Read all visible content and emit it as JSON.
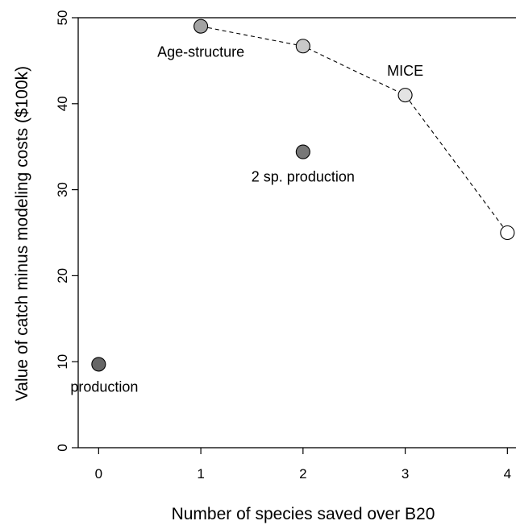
{
  "chart_data": {
    "type": "scatter",
    "title": "",
    "xlabel": "Number of species saved over B20",
    "ylabel": "Value of catch minus modeling costs ($100k)",
    "xlim": [
      -0.2,
      4.1
    ],
    "ylim": [
      0,
      50
    ],
    "xticks": [
      "0",
      "1",
      "2",
      "3",
      "4"
    ],
    "yticks": [
      "0",
      "10",
      "20",
      "30",
      "40",
      "50"
    ],
    "grid": false,
    "legend": "none",
    "points": [
      {
        "x": 0,
        "y": 9.7,
        "label": "production",
        "fill": "#666666"
      },
      {
        "x": 1,
        "y": 49,
        "label": "Age-structure",
        "fill": "#a3a3a3"
      },
      {
        "x": 2,
        "y": 46.7,
        "label": "",
        "fill": "#c9c9c9"
      },
      {
        "x": 2,
        "y": 34.4,
        "label": "2 sp. production",
        "fill": "#777777"
      },
      {
        "x": 3,
        "y": 41,
        "label": "MICE",
        "fill": "#e3e3e3"
      },
      {
        "x": 4,
        "y": 25,
        "label": "",
        "fill": "#ffffff"
      }
    ],
    "frontier": {
      "style": "dashed",
      "points": [
        {
          "x": 1,
          "y": 49
        },
        {
          "x": 2,
          "y": 46.7
        },
        {
          "x": 3,
          "y": 41
        },
        {
          "x": 4,
          "y": 25
        }
      ]
    }
  }
}
